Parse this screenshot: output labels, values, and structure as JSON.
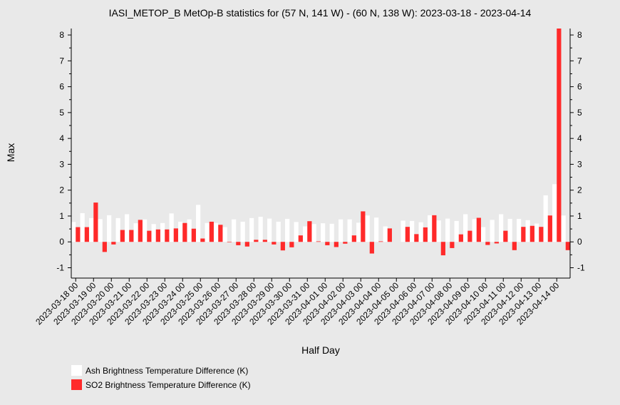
{
  "chart_data": {
    "type": "bar",
    "title": "IASI_METOP_B MetOp-B statistics for (57 N, 141 W) - (60 N, 138 W): 2023-03-18 - 2023-04-14",
    "xlabel": "Half Day",
    "ylabel": "Max",
    "ylim": [
      -1.4,
      8.25
    ],
    "yticks": [
      -1,
      0,
      1,
      2,
      3,
      4,
      5,
      6,
      7,
      8
    ],
    "categories": [
      "2023-03-18 00",
      "2023-03-18 12",
      "2023-03-19 00",
      "2023-03-19 12",
      "2023-03-20 00",
      "2023-03-20 12",
      "2023-03-21 00",
      "2023-03-21 12",
      "2023-03-22 00",
      "2023-03-22 12",
      "2023-03-23 00",
      "2023-03-23 12",
      "2023-03-24 00",
      "2023-03-24 12",
      "2023-03-25 00",
      "2023-03-25 12",
      "2023-03-26 00",
      "2023-03-26 12",
      "2023-03-27 00",
      "2023-03-27 12",
      "2023-03-28 00",
      "2023-03-28 12",
      "2023-03-29 00",
      "2023-03-29 12",
      "2023-03-30 00",
      "2023-03-30 12",
      "2023-03-31 00",
      "2023-03-31 12",
      "2023-04-01 00",
      "2023-04-01 12",
      "2023-04-02 00",
      "2023-04-02 12",
      "2023-04-03 00",
      "2023-04-03 12",
      "2023-04-04 00",
      "2023-04-04 12",
      "2023-04-05 00",
      "2023-04-05 12",
      "2023-04-06 00",
      "2023-04-06 12",
      "2023-04-07 00",
      "2023-04-07 12",
      "2023-04-08 00",
      "2023-04-08 12",
      "2023-04-09 00",
      "2023-04-09 12",
      "2023-04-10 00",
      "2023-04-10 12",
      "2023-04-11 00",
      "2023-04-11 12",
      "2023-04-12 00",
      "2023-04-12 12",
      "2023-04-13 00",
      "2023-04-13 12",
      "2023-04-14 00",
      "2023-04-14 12"
    ],
    "tick_labels": [
      "2023-03-18 00",
      "2023-03-19 00",
      "2023-03-20 00",
      "2023-03-21 00",
      "2023-03-22 00",
      "2023-03-23 00",
      "2023-03-24 00",
      "2023-03-25 00",
      "2023-03-26 00",
      "2023-03-27 00",
      "2023-03-28 00",
      "2023-03-29 00",
      "2023-03-30 00",
      "2023-03-31 00",
      "2023-04-01 00",
      "2023-04-02 00",
      "2023-04-03 00",
      "2023-04-04 00",
      "2023-04-05 00",
      "2023-04-06 00",
      "2023-04-07 00",
      "2023-04-08 00",
      "2023-04-09 00",
      "2023-04-10 00",
      "2023-04-11 00",
      "2023-04-12 00",
      "2023-04-13 00",
      "2023-04-14 00"
    ],
    "series": [
      {
        "name": "Ash Brightness Temperature Difference (K)",
        "color": "#ffffff",
        "values": [
          0.77,
          1.11,
          0.92,
          0.88,
          1.03,
          0.92,
          1.07,
          0.72,
          0.87,
          0.69,
          0.73,
          1.1,
          0.78,
          0.87,
          1.43,
          0.73,
          0.73,
          0.57,
          0.87,
          0.78,
          0.92,
          0.97,
          0.9,
          0.78,
          0.89,
          0.77,
          0.6,
          0.69,
          0.72,
          0.7,
          0.87,
          0.87,
          0.74,
          1.02,
          0.94,
          0.6,
          null,
          0.82,
          0.81,
          0.76,
          1.03,
          0.83,
          0.9,
          0.81,
          1.07,
          0.88,
          0.57,
          0.85,
          1.07,
          0.89,
          0.89,
          0.84,
          0.71,
          1.8,
          2.23,
          1.02
        ]
      },
      {
        "name": "SO2 Brightness Temperature Difference (K)",
        "color": "#ff2a2a",
        "values": [
          0.57,
          0.57,
          1.52,
          -0.39,
          -0.1,
          0.46,
          0.46,
          0.85,
          0.43,
          0.48,
          0.48,
          0.52,
          0.73,
          0.51,
          0.13,
          0.78,
          0.66,
          0.0,
          -0.13,
          -0.18,
          0.08,
          0.08,
          -0.1,
          -0.33,
          -0.21,
          0.25,
          0.8,
          0.02,
          -0.13,
          -0.2,
          -0.07,
          0.25,
          1.18,
          -0.45,
          0.02,
          0.52,
          null,
          0.58,
          0.3,
          0.56,
          1.03,
          -0.52,
          -0.24,
          0.29,
          0.43,
          0.93,
          -0.12,
          -0.06,
          0.43,
          -0.32,
          0.58,
          0.62,
          0.58,
          1.02,
          8.25,
          -0.32
        ]
      }
    ],
    "legend_position": "bottom-left",
    "grid": false
  }
}
